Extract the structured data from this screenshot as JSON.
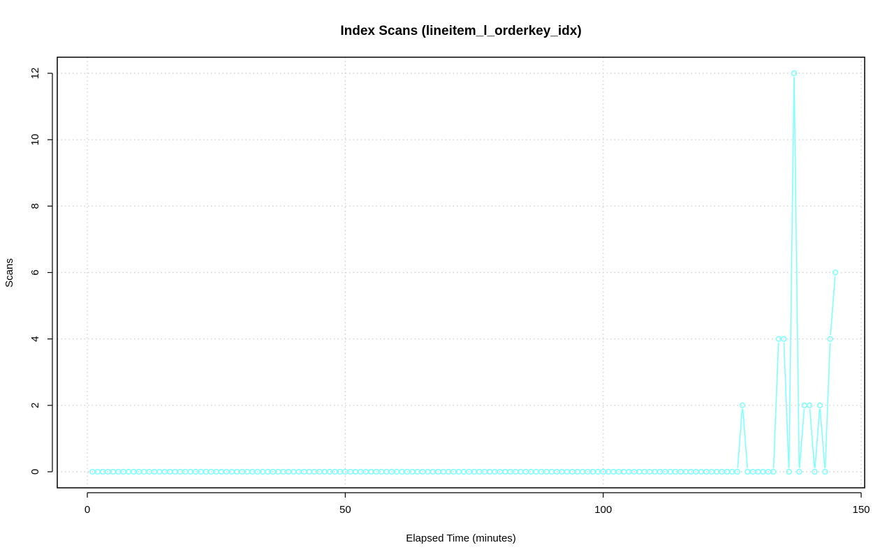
{
  "chart_data": {
    "type": "line",
    "title": "Index Scans (lineitem_l_orderkey_idx)",
    "xlabel": "Elapsed Time (minutes)",
    "ylabel": "Scans",
    "xlim": [
      0,
      150
    ],
    "ylim": [
      0,
      12
    ],
    "x_ticks": [
      0,
      50,
      100,
      150
    ],
    "y_ticks": [
      0,
      2,
      4,
      6,
      8,
      10,
      12
    ],
    "grid": true,
    "series_color": "#7FFFFF",
    "series": [
      {
        "x": [
          1,
          2,
          3,
          4,
          5,
          6,
          7,
          8,
          9,
          10,
          11,
          12,
          13,
          14,
          15,
          16,
          17,
          18,
          19,
          20,
          21,
          22,
          23,
          24,
          25,
          26,
          27,
          28,
          29,
          30,
          31,
          32,
          33,
          34,
          35,
          36,
          37,
          38,
          39,
          40,
          41,
          42,
          43,
          44,
          45,
          46,
          47,
          48,
          49,
          50,
          51,
          52,
          53,
          54,
          55,
          56,
          57,
          58,
          59,
          60,
          61,
          62,
          63,
          64,
          65,
          66,
          67,
          68,
          69,
          70,
          71,
          72,
          73,
          74,
          75,
          76,
          77,
          78,
          79,
          80,
          81,
          82,
          83,
          84,
          85,
          86,
          87,
          88,
          89,
          90,
          91,
          92,
          93,
          94,
          95,
          96,
          97,
          98,
          99,
          100,
          101,
          102,
          103,
          104,
          105,
          106,
          107,
          108,
          109,
          110,
          111,
          112,
          113,
          114,
          115,
          116,
          117,
          118,
          119,
          120,
          121,
          122,
          123,
          124,
          125,
          126,
          127,
          128,
          129,
          130,
          131,
          132,
          133,
          134,
          135,
          136,
          137,
          138,
          139,
          140,
          141,
          142,
          143,
          144,
          145
        ],
        "values": [
          0,
          0,
          0,
          0,
          0,
          0,
          0,
          0,
          0,
          0,
          0,
          0,
          0,
          0,
          0,
          0,
          0,
          0,
          0,
          0,
          0,
          0,
          0,
          0,
          0,
          0,
          0,
          0,
          0,
          0,
          0,
          0,
          0,
          0,
          0,
          0,
          0,
          0,
          0,
          0,
          0,
          0,
          0,
          0,
          0,
          0,
          0,
          0,
          0,
          0,
          0,
          0,
          0,
          0,
          0,
          0,
          0,
          0,
          0,
          0,
          0,
          0,
          0,
          0,
          0,
          0,
          0,
          0,
          0,
          0,
          0,
          0,
          0,
          0,
          0,
          0,
          0,
          0,
          0,
          0,
          0,
          0,
          0,
          0,
          0,
          0,
          0,
          0,
          0,
          0,
          0,
          0,
          0,
          0,
          0,
          0,
          0,
          0,
          0,
          0,
          0,
          0,
          0,
          0,
          0,
          0,
          0,
          0,
          0,
          0,
          0,
          0,
          0,
          0,
          0,
          0,
          0,
          0,
          0,
          0,
          0,
          0,
          0,
          0,
          0,
          0,
          2,
          0,
          0,
          0,
          0,
          0,
          0,
          4,
          4,
          0,
          12,
          0,
          2,
          2,
          0,
          2,
          0,
          4,
          6
        ]
      }
    ]
  }
}
